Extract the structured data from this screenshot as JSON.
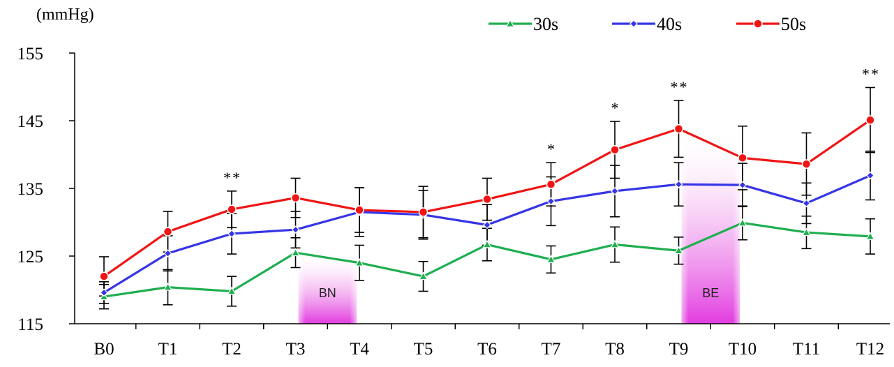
{
  "chart_data": {
    "type": "line",
    "unit_label": "(mmHg)",
    "categories": [
      "B0",
      "T1",
      "T2",
      "T3",
      "T4",
      "T5",
      "T6",
      "T7",
      "T8",
      "T9",
      "T10",
      "T11",
      "T12"
    ],
    "ylim": [
      115,
      155
    ],
    "yticks": [
      115,
      125,
      135,
      145,
      155
    ],
    "legend_position": "top-right",
    "series": [
      {
        "name": "30s",
        "color": "#1fae50",
        "marker": "triangle",
        "values": [
          119,
          120.4,
          119.8,
          125.5,
          124,
          122,
          126.7,
          124.5,
          126.7,
          125.8,
          129.9,
          128.5,
          127.9
        ],
        "errors": [
          1.8,
          2.6,
          2.2,
          2.2,
          2.6,
          2.2,
          2.4,
          2.0,
          2.6,
          2.0,
          2.5,
          2.4,
          2.6
        ]
      },
      {
        "name": "40s",
        "color": "#3535e6",
        "marker": "diamond",
        "values": [
          119.6,
          125.4,
          128.3,
          128.9,
          131.5,
          131.1,
          129.6,
          133.1,
          134.6,
          135.6,
          135.5,
          132.8,
          136.9
        ],
        "errors": [
          1.6,
          2.6,
          3.0,
          2.7,
          3.6,
          3.6,
          3.0,
          3.6,
          3.8,
          3.2,
          3.2,
          3.0,
          3.6
        ]
      },
      {
        "name": "50s",
        "color": "#f01414",
        "marker": "circle",
        "values": [
          122,
          128.6,
          131.9,
          133.6,
          131.8,
          131.5,
          133.4,
          135.6,
          140.7,
          143.8,
          139.5,
          138.6,
          145.1
        ],
        "errors": [
          2.9,
          3.0,
          2.7,
          2.9,
          3.3,
          3.8,
          3.1,
          3.2,
          4.2,
          4.2,
          4.7,
          4.6,
          4.8
        ]
      }
    ],
    "significance": [
      {
        "category": "T2",
        "label": "**"
      },
      {
        "category": "T7",
        "label": "*"
      },
      {
        "category": "T8",
        "label": "*"
      },
      {
        "category": "T9",
        "label": "**"
      },
      {
        "category": "T12",
        "label": "**"
      }
    ],
    "bands": [
      {
        "label": "BN",
        "from": "T3",
        "to": "T4",
        "top": 125.5
      },
      {
        "label": "BE",
        "from": "T9",
        "to": "T10",
        "top": 143.8
      }
    ]
  }
}
